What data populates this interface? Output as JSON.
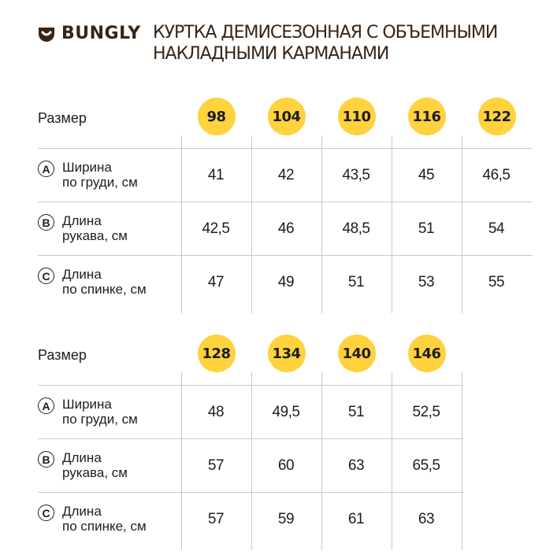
{
  "brand": {
    "name": "BUNGLY",
    "logo_icon": "smile-cup-icon",
    "color": "#3a2414"
  },
  "title": {
    "line1": "КУРТКА ДЕМИСЕЗОННАЯ С ОБЪЕМНЫМИ",
    "line2": "НАКЛАДНЫМИ КАРМАНАМИ"
  },
  "accent_color": "#ffd23e",
  "tables": [
    {
      "size_label": "Размер",
      "sizes": [
        "98",
        "104",
        "110",
        "116",
        "122"
      ],
      "rows": [
        {
          "letter": "A",
          "label1": "Ширина",
          "label2": "по груди, см",
          "values": [
            "41",
            "42",
            "43,5",
            "45",
            "46,5"
          ]
        },
        {
          "letter": "B",
          "label1": "Длина",
          "label2": "рукава, см",
          "values": [
            "42,5",
            "46",
            "48,5",
            "51",
            "54"
          ]
        },
        {
          "letter": "C",
          "label1": "Длина",
          "label2": "по спинке, см",
          "values": [
            "47",
            "49",
            "51",
            "53",
            "55"
          ]
        }
      ]
    },
    {
      "size_label": "Размер",
      "sizes": [
        "128",
        "134",
        "140",
        "146"
      ],
      "rows": [
        {
          "letter": "A",
          "label1": "Ширина",
          "label2": "по груди, см",
          "values": [
            "48",
            "49,5",
            "51",
            "52,5"
          ]
        },
        {
          "letter": "B",
          "label1": "Длина",
          "label2": "рукава, см",
          "values": [
            "57",
            "60",
            "63",
            "65,5"
          ]
        },
        {
          "letter": "C",
          "label1": "Длина",
          "label2": "по спинке, см",
          "values": [
            "57",
            "59",
            "61",
            "63"
          ]
        }
      ]
    }
  ]
}
